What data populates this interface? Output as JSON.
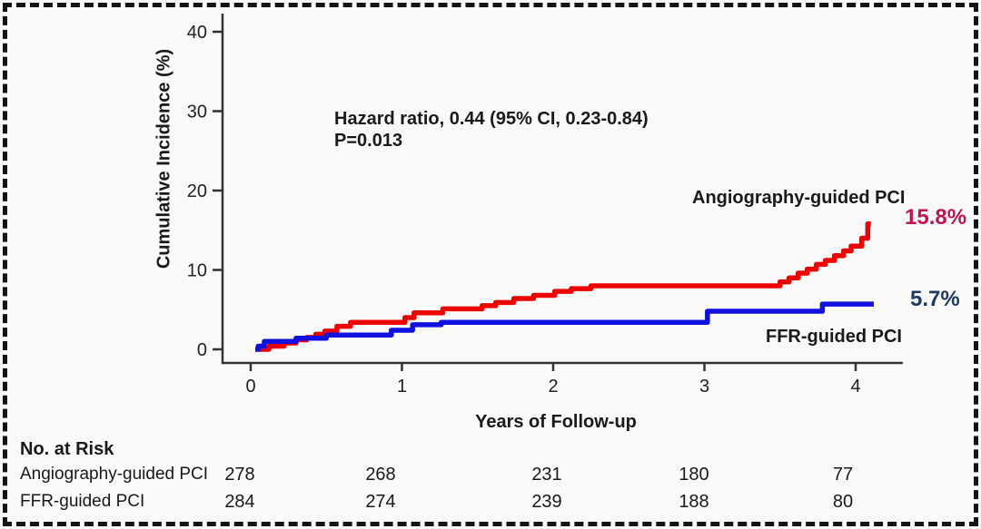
{
  "page": {
    "background": "#fafafa",
    "border_color": "#141414"
  },
  "chart_data": {
    "type": "line",
    "subtype": "step-cumulative-incidence",
    "title": "",
    "xlabel": "Years of Follow-up",
    "ylabel": "Cumulative Incidence (%)",
    "x_ticks": [
      0,
      1,
      2,
      3,
      4
    ],
    "y_ticks": [
      0,
      10,
      20,
      30,
      40
    ],
    "xlim": [
      0,
      4.3
    ],
    "ylim": [
      0,
      42
    ],
    "grid": false,
    "legend_position": "end-of-line labels",
    "annotation": {
      "line1": "Hazard ratio, 0.44 (95% CI, 0.23-0.84)",
      "line2": "P=0.013"
    },
    "axis_color": "#333333",
    "series": [
      {
        "name": "Angiography-guided PCI",
        "color": "#ee0000",
        "end_label": "15.8%",
        "end_label_color": "#c11552",
        "points": [
          [
            0.05,
            0
          ],
          [
            0.12,
            0.4
          ],
          [
            0.22,
            0.8
          ],
          [
            0.3,
            1.2
          ],
          [
            0.37,
            1.5
          ],
          [
            0.43,
            1.9
          ],
          [
            0.49,
            2.3
          ],
          [
            0.57,
            2.9
          ],
          [
            0.66,
            3.4
          ],
          [
            1.02,
            4.0
          ],
          [
            1.08,
            4.6
          ],
          [
            1.27,
            5.1
          ],
          [
            1.53,
            5.5
          ],
          [
            1.62,
            5.9
          ],
          [
            1.74,
            6.4
          ],
          [
            1.87,
            6.8
          ],
          [
            2.01,
            7.3
          ],
          [
            2.12,
            7.65
          ],
          [
            2.25,
            8.0
          ],
          [
            3.5,
            8.5
          ],
          [
            3.56,
            9.0
          ],
          [
            3.62,
            9.6
          ],
          [
            3.68,
            10.1
          ],
          [
            3.74,
            10.7
          ],
          [
            3.8,
            11.2
          ],
          [
            3.86,
            11.8
          ],
          [
            3.92,
            12.4
          ],
          [
            3.97,
            13.0
          ],
          [
            4.04,
            14.0
          ],
          [
            4.08,
            15.8
          ],
          [
            4.1,
            15.8
          ]
        ]
      },
      {
        "name": "FFR-guided PCI",
        "color": "#1010e0",
        "end_label": "5.7%",
        "end_label_color": "#1f3864",
        "points": [
          [
            0.03,
            0
          ],
          [
            0.05,
            0.4
          ],
          [
            0.09,
            1.0
          ],
          [
            0.3,
            1.4
          ],
          [
            0.5,
            1.8
          ],
          [
            0.93,
            2.4
          ],
          [
            1.07,
            3.1
          ],
          [
            1.26,
            3.4
          ],
          [
            3.02,
            4.8
          ],
          [
            3.78,
            5.7
          ],
          [
            4.12,
            5.7
          ]
        ]
      }
    ]
  },
  "risk_table": {
    "title": "No. at Risk",
    "rows": [
      {
        "label": "Angiography-guided PCI",
        "values": [
          "278",
          "268",
          "231",
          "180",
          "77"
        ]
      },
      {
        "label": "FFR-guided PCI",
        "values": [
          "284",
          "274",
          "239",
          "188",
          "80"
        ]
      }
    ]
  }
}
